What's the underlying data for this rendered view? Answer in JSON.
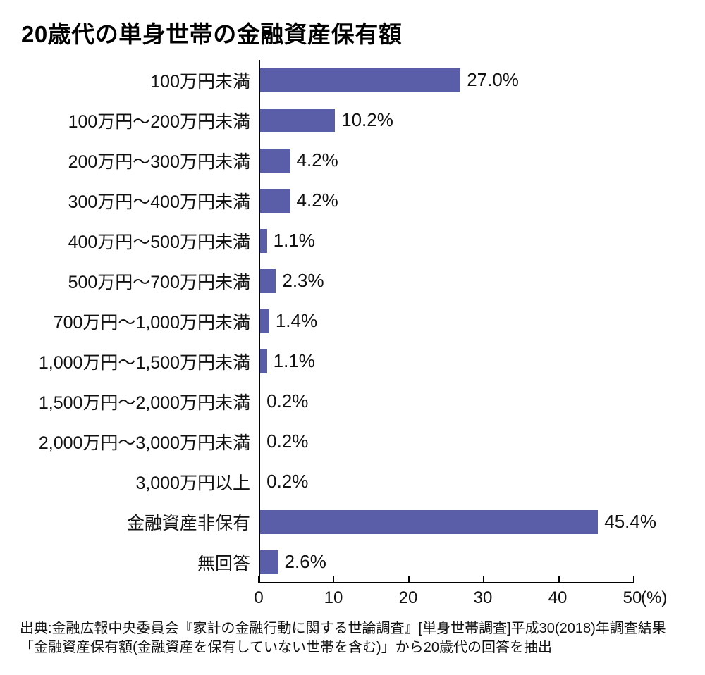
{
  "title": "20歳代の単身世帯の金融資産保有額",
  "chart_data": {
    "type": "bar",
    "orientation": "horizontal",
    "title": "20歳代の単身世帯の金融資産保有額",
    "categories": [
      "100万円未満",
      "100万円〜200万円未満",
      "200万円〜300万円未満",
      "300万円〜400万円未満",
      "400万円〜500万円未満",
      "500万円〜700万円未満",
      "700万円〜1,000万円未満",
      "1,000万円〜1,500万円未満",
      "1,500万円〜2,000万円未満",
      "2,000万円〜3,000万円未満",
      "3,000万円以上",
      "金融資産非保有",
      "無回答"
    ],
    "values": [
      27.0,
      10.2,
      4.2,
      4.2,
      1.1,
      2.3,
      1.4,
      1.1,
      0.2,
      0.2,
      0.2,
      45.4,
      2.6
    ],
    "value_labels": [
      "27.0%",
      "10.2%",
      "4.2%",
      "4.2%",
      "1.1%",
      "2.3%",
      "1.4%",
      "1.1%",
      "0.2%",
      "0.2%",
      "0.2%",
      "45.4%",
      "2.6%"
    ],
    "xlabel": "",
    "ylabel": "",
    "xlim": [
      0,
      50
    ],
    "x_ticks": [
      0,
      10,
      20,
      30,
      40,
      50
    ],
    "x_unit": "(%)",
    "bar_color": "#5a5ea8",
    "axis_color": "#000000",
    "grid": false,
    "legend": "none"
  },
  "source": {
    "line1": "出典:金融広報中央委員会『家計の金融行動に関する世論調査』[単身世帯調査]平成30(2018)年調査結果",
    "line2": "「金融資産保有額(金融資産を保有していない世帯を含む)」から20歳代の回答を抽出"
  }
}
